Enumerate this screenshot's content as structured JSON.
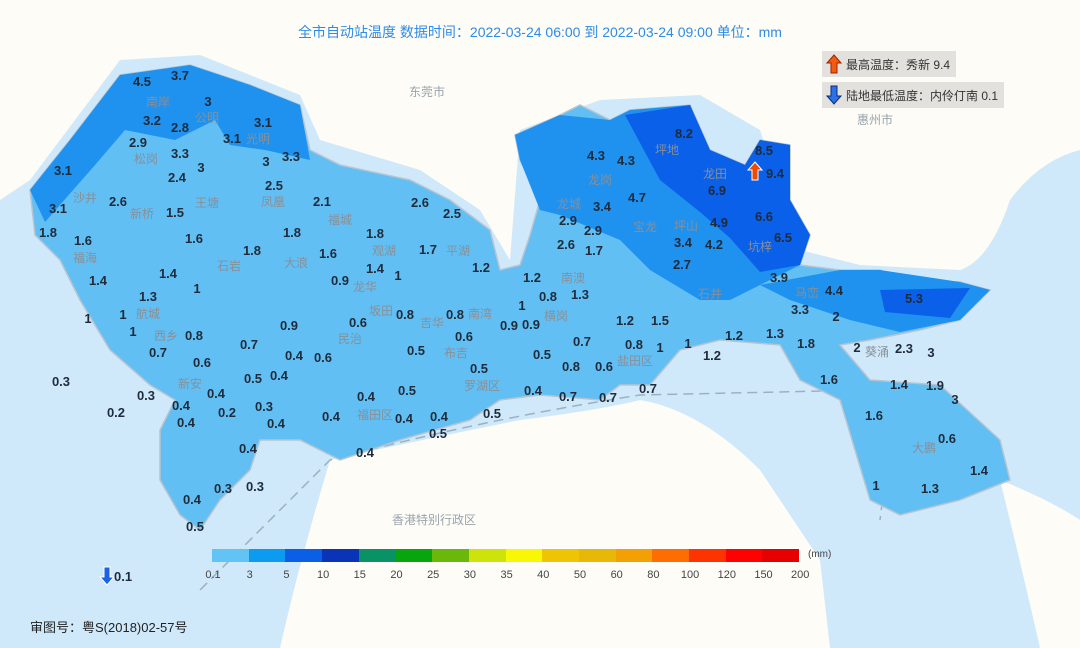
{
  "title": "全市自动站温度  数据时间：2022-03-24 06:00 到 2022-03-24 09:00  单位：mm",
  "max_badge": {
    "icon": "arrow-up-icon",
    "label": "最高温度：秀新 9.4"
  },
  "min_badge": {
    "icon": "arrow-down-icon",
    "label": "陆地最低温度：内伶仃南 0.1"
  },
  "min_marker_value": "0.1",
  "max_marker_value": "9.4",
  "approval": "审图号：粤S(2018)02-57号",
  "colors": {
    "sea": "#cfe9fb",
    "land": "#fdfcf6",
    "level1": "#62bff4",
    "level2": "#1f91ef",
    "level3": "#0a60e9"
  },
  "legend": {
    "unit": "(mm)",
    "ticks": [
      "0.1",
      "3",
      "5",
      "10",
      "15",
      "20",
      "25",
      "30",
      "35",
      "40",
      "50",
      "60",
      "80",
      "100",
      "120",
      "150",
      "200"
    ],
    "colors": [
      "#62c3f5",
      "#0b9cf0",
      "#0b5ee6",
      "#0a34b8",
      "#089265",
      "#07a60f",
      "#6cb80a",
      "#cde30a",
      "#f8f705",
      "#eec404",
      "#e8b806",
      "#f2a003",
      "#fe6d02",
      "#fe3302",
      "#fe0202",
      "#e60001"
    ]
  },
  "city_labels": [
    "东莞市",
    "惠州市",
    "香港特别行政区"
  ],
  "place_names": [
    "南岸",
    "公明",
    "松岗",
    "光明",
    "凤凰",
    "沙井",
    "新桥",
    "王塘",
    "福海",
    "石岩",
    "大浪",
    "福城",
    "观湖",
    "平湖",
    "龙华",
    "航城",
    "西乡",
    "坂田",
    "吉华",
    "南湾",
    "横岗",
    "民治",
    "布吉",
    "新安",
    "罗湖区",
    "福田区",
    "盐田区",
    "龙岗",
    "坪地",
    "宝龙",
    "龙城",
    "坪山",
    "坑梓",
    "石井",
    "马峦",
    "葵涌",
    "大鹏",
    "南澳",
    "龙田"
  ],
  "stations": [
    "4.5",
    "3.7",
    "3",
    "3.2",
    "2.8",
    "3.1",
    "3.1",
    "2.9",
    "3.3",
    "3",
    "3.3",
    "3.1",
    "2.4",
    "3",
    "2.5",
    "3.1",
    "2.6",
    "1.5",
    "2.1",
    "2.6",
    "2.5",
    "1.8",
    "1.6",
    "1.6",
    "1.8",
    "1.8",
    "1.6",
    "1.8",
    "1.7",
    "1.4",
    "1",
    "1.2",
    "1.4",
    "1.4",
    "1.3",
    "1",
    "0.9",
    "1",
    "1",
    "1",
    "0.8",
    "0.9",
    "0.6",
    "0.8",
    "0.8",
    "0.9",
    "0.7",
    "0.7",
    "0.6",
    "0.4",
    "0.6",
    "0.5",
    "0.6",
    "0.3",
    "0.3",
    "0.4",
    "0.4",
    "0.4",
    "0.5",
    "0.5",
    "0.2",
    "0.4",
    "0.2",
    "0.3",
    "0.4",
    "0.4",
    "0.5",
    "0.4",
    "0.4",
    "0.4",
    "0.5",
    "0.5",
    "0.4",
    "0.4",
    "0.3",
    "0.4",
    "0.3",
    "0.5",
    "4.3",
    "4.3",
    "8.2",
    "3.4",
    "4.7",
    "2.9",
    "2.9",
    "2.6",
    "1.7",
    "6.9",
    "8.5",
    "4.9",
    "6.6",
    "6.5",
    "3.4",
    "4.2",
    "2.7",
    "3.9",
    "1.2",
    "0.8",
    "1.3",
    "1",
    "0.9",
    "1.2",
    "1.5",
    "0.7",
    "0.8",
    "1",
    "1",
    "0.5",
    "0.8",
    "0.6",
    "1.2",
    "0.4",
    "0.7",
    "0.7",
    "0.7",
    "1.2",
    "1.3",
    "1.8",
    "4.4",
    "3.3",
    "2",
    "5.3",
    "2",
    "2.3",
    "3",
    "1.6",
    "1.4",
    "1.9",
    "3",
    "1.6",
    "0.6",
    "1.4",
    "1",
    "1.3"
  ]
}
